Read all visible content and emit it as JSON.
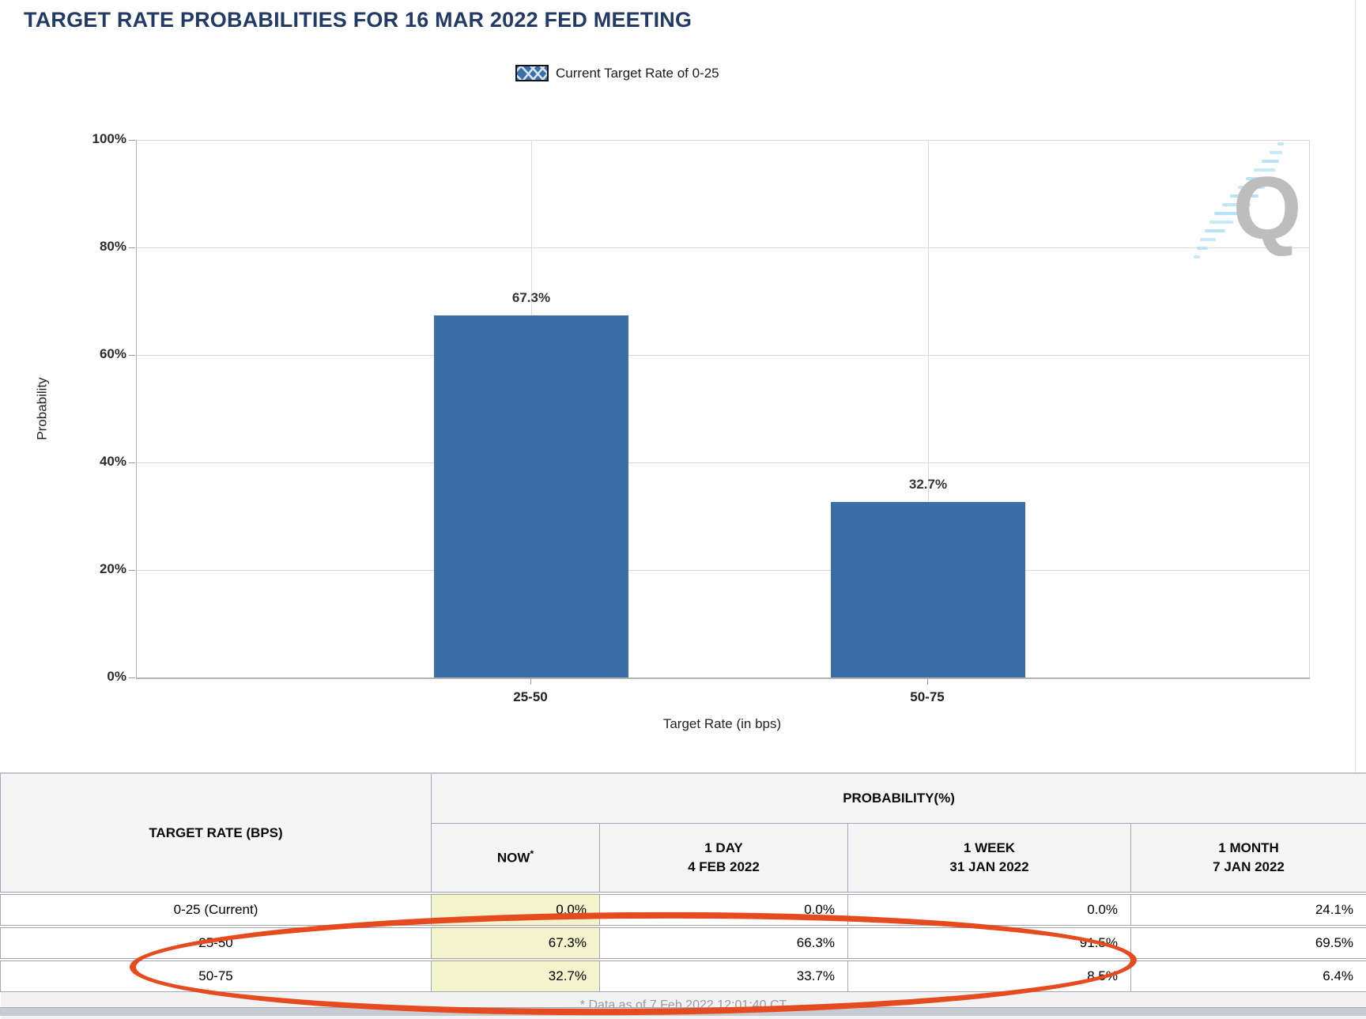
{
  "title": "TARGET RATE PROBABILITIES FOR 16 MAR 2022 FED MEETING",
  "chart_data": {
    "type": "bar",
    "title": "TARGET RATE PROBABILITIES FOR 16 MAR 2022 FED MEETING",
    "legend": {
      "label": "Current Target Rate of 0-25",
      "swatch": "blue-crosshatch",
      "position": "top"
    },
    "categories": [
      "25-50",
      "50-75"
    ],
    "values": [
      67.3,
      32.7
    ],
    "value_labels": [
      "67.3%",
      "32.7%"
    ],
    "xlabel": "Target Rate (in bps)",
    "ylabel": "Probability",
    "ylim": [
      0,
      100
    ],
    "yticks_top_to_bottom": [
      "100%",
      "80%",
      "60%",
      "40%",
      "20%",
      "0%"
    ],
    "grid": true,
    "bar_color": "#3b6ea6",
    "watermark_letter": "Q"
  },
  "table": {
    "row_header": "TARGET RATE (BPS)",
    "group_header": "PROBABILITY(%)",
    "columns": [
      {
        "label": "NOW",
        "sup": "*"
      },
      {
        "label": "1 DAY",
        "sub": "4 FEB 2022"
      },
      {
        "label": "1 WEEK",
        "sub": "31 JAN 2022"
      },
      {
        "label": "1 MONTH",
        "sub": "7 JAN 2022"
      }
    ],
    "rows": [
      {
        "rate": "0-25 (Current)",
        "now": "0.0%",
        "day1": "0.0%",
        "week1": "0.0%",
        "month1": "24.1%"
      },
      {
        "rate": "25-50",
        "now": "67.3%",
        "day1": "66.3%",
        "week1": "91.5%",
        "month1": "69.5%"
      },
      {
        "rate": "50-75",
        "now": "32.7%",
        "day1": "33.7%",
        "week1": "8.5%",
        "month1": "6.4%"
      }
    ],
    "now_highlight_color": "#f4f4cc",
    "footnote": "* Data as of 7 Feb 2022 12:01:40 CT"
  },
  "annotation": {
    "shape": "hand-drawn-ellipse",
    "color": "#e64b1f",
    "highlights_row": "50-75"
  }
}
